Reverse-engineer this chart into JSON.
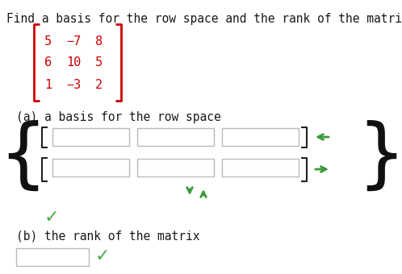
{
  "bg_color": "#ffffff",
  "title_text": "Find a basis for the row space and the rank of the matrix.",
  "title_color": "#1a1a1a",
  "title_fontsize": 10.5,
  "matrix_color": "#cc0000",
  "matrix_bracket_color": "#cc0000",
  "matrix_rows": [
    [
      "5",
      "−7",
      "8"
    ],
    [
      "6",
      "10",
      "5"
    ],
    [
      "1",
      "−3",
      "2"
    ]
  ],
  "part_a_label": "(a) a basis for the row space",
  "part_b_label": "(b) the rank of the matrix",
  "part_label_color": "#1a1a1a",
  "part_label_fontsize": 10.5,
  "box_edge_color": "#bbbbbb",
  "bracket_color": "#222222",
  "green_check_color": "#4aaa4a",
  "green_arrow_color": "#3a9a3a"
}
